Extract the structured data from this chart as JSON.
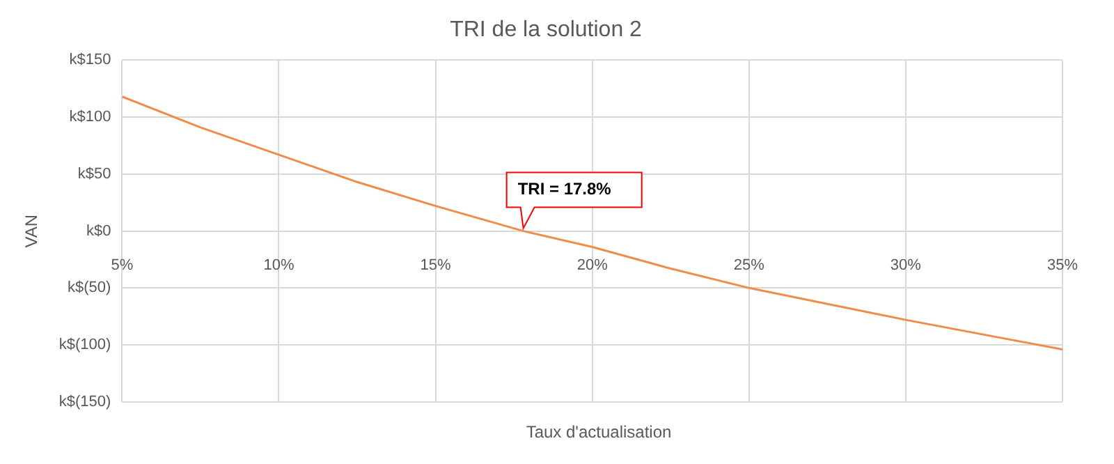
{
  "chart_data": {
    "type": "line",
    "title": "TRI de la solution 2",
    "xlabel": "Taux d'actualisation",
    "ylabel": "VAN",
    "x": [
      5,
      7.5,
      10,
      12.5,
      15,
      17.8,
      20,
      22.5,
      25,
      27.5,
      30,
      32.5,
      35
    ],
    "series": [
      {
        "color": "#f08c4a",
        "values": [
          118,
          91,
          67,
          43,
          22,
          0,
          -14,
          -33,
          -50,
          -64,
          -78,
          -91,
          -104
        ]
      }
    ],
    "xlim": [
      5,
      35
    ],
    "xticks": [
      {
        "value": 5,
        "label": "5%"
      },
      {
        "value": 10,
        "label": "10%"
      },
      {
        "value": 15,
        "label": "15%"
      },
      {
        "value": 20,
        "label": "20%"
      },
      {
        "value": 25,
        "label": "25%"
      },
      {
        "value": 30,
        "label": "30%"
      },
      {
        "value": 35,
        "label": "35%"
      }
    ],
    "ylim": [
      -150,
      150
    ],
    "yticks": [
      {
        "value": -150,
        "label": "k$(150)"
      },
      {
        "value": -100,
        "label": "k$(100)"
      },
      {
        "value": -50,
        "label": "k$(50)"
      },
      {
        "value": 0,
        "label": "k$0"
      },
      {
        "value": 50,
        "label": "k$50"
      },
      {
        "value": 100,
        "label": "k$100"
      },
      {
        "value": 150,
        "label": "k$150"
      }
    ],
    "annotations": [
      {
        "text": "TRI = 17.8%",
        "x": 17.8,
        "y": 0
      }
    ],
    "grid": true,
    "legend": false,
    "marker": "none",
    "line_style": "solid"
  }
}
